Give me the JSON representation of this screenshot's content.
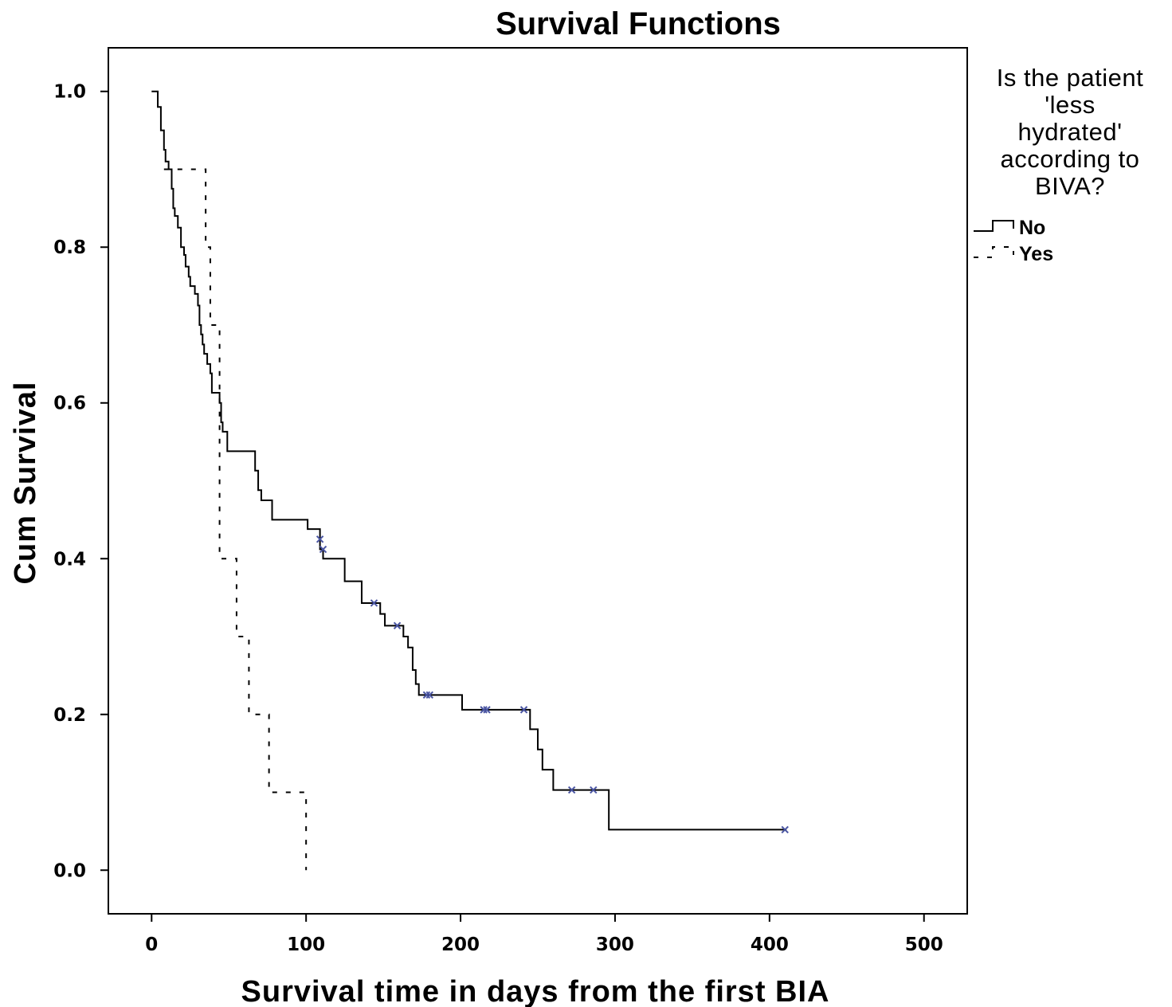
{
  "chart_data": {
    "type": "line",
    "title": "Survival Functions",
    "xlabel": "Survival time in days from the first BIA",
    "ylabel": "Cum Survival",
    "xlim": [
      -28,
      528
    ],
    "ylim": [
      -0.056,
      1.056
    ],
    "x_ticks": [
      0,
      100,
      200,
      300,
      400,
      500
    ],
    "x_tick_labels": [
      "0",
      "100",
      "200",
      "300",
      "400",
      "500"
    ],
    "y_ticks": [
      0.0,
      0.2,
      0.4,
      0.6,
      0.8,
      1.0
    ],
    "y_tick_labels": [
      "0.0",
      "0.2",
      "0.4",
      "0.6",
      "0.8",
      "1.0"
    ],
    "grid": false,
    "legend": {
      "title": [
        "Is the patient",
        "'less",
        "hydrated'",
        "according to",
        "BIVA?"
      ],
      "placement": "right"
    },
    "censor_color": "#4a55a2",
    "series": [
      {
        "name": "No",
        "style": "solid",
        "steps": [
          [
            0,
            1.0
          ],
          [
            4,
            0.98
          ],
          [
            6,
            0.95
          ],
          [
            8,
            0.925
          ],
          [
            9,
            0.91
          ],
          [
            11,
            0.9
          ],
          [
            13,
            0.875
          ],
          [
            14,
            0.85
          ],
          [
            15,
            0.84
          ],
          [
            17,
            0.825
          ],
          [
            19,
            0.8
          ],
          [
            21,
            0.79
          ],
          [
            22,
            0.775
          ],
          [
            24,
            0.762
          ],
          [
            25,
            0.75
          ],
          [
            28,
            0.74
          ],
          [
            30,
            0.725
          ],
          [
            31,
            0.7
          ],
          [
            32,
            0.688
          ],
          [
            33,
            0.675
          ],
          [
            34,
            0.663
          ],
          [
            36,
            0.65
          ],
          [
            38,
            0.638
          ],
          [
            39,
            0.613
          ],
          [
            44,
            0.6
          ],
          [
            45,
            0.575
          ],
          [
            46,
            0.563
          ],
          [
            49,
            0.538
          ],
          [
            67,
            0.513
          ],
          [
            69,
            0.488
          ],
          [
            71,
            0.475
          ],
          [
            78,
            0.45
          ],
          [
            101,
            0.438
          ],
          [
            109,
            0.412
          ],
          [
            111,
            0.4
          ],
          [
            125,
            0.371
          ],
          [
            136,
            0.343
          ],
          [
            148,
            0.329
          ],
          [
            151,
            0.314
          ],
          [
            163,
            0.3
          ],
          [
            166,
            0.286
          ],
          [
            169,
            0.257
          ],
          [
            171,
            0.239
          ],
          [
            173,
            0.225
          ],
          [
            201,
            0.206
          ],
          [
            245,
            0.181
          ],
          [
            250,
            0.155
          ],
          [
            253,
            0.129
          ],
          [
            260,
            0.103
          ],
          [
            296,
            0.052
          ],
          [
            411,
            0.052
          ]
        ],
        "censored": [
          [
            109,
            0.425
          ],
          [
            111,
            0.412
          ],
          [
            144,
            0.343
          ],
          [
            159,
            0.314
          ],
          [
            178,
            0.225
          ],
          [
            180,
            0.225
          ],
          [
            215,
            0.206
          ],
          [
            217,
            0.206
          ],
          [
            241,
            0.206
          ],
          [
            272,
            0.103
          ],
          [
            286,
            0.103
          ],
          [
            410,
            0.052
          ]
        ]
      },
      {
        "name": "Yes",
        "style": "dashed",
        "steps": [
          [
            8,
            0.9
          ],
          [
            35,
            0.8
          ],
          [
            38,
            0.7
          ],
          [
            44,
            0.4
          ],
          [
            55,
            0.3
          ],
          [
            63,
            0.2
          ],
          [
            76,
            0.1
          ],
          [
            100,
            0.0
          ]
        ],
        "censored": []
      }
    ]
  }
}
